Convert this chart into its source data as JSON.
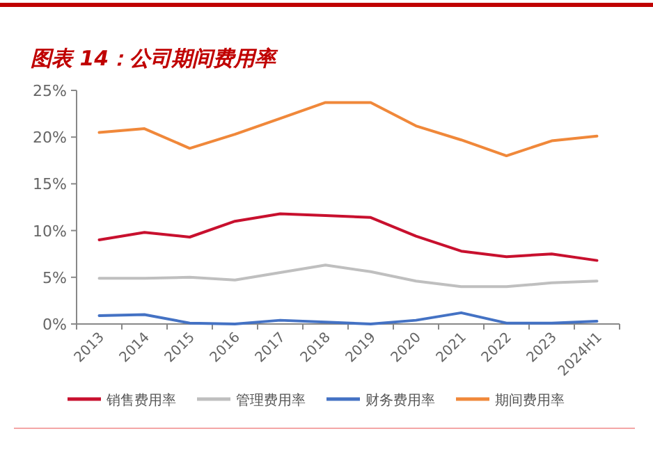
{
  "chart_data": {
    "type": "line",
    "title": "图表 14：公司期间费用率",
    "categories": [
      "2013",
      "2014",
      "2015",
      "2016",
      "2017",
      "2018",
      "2019",
      "2020",
      "2021",
      "2022",
      "2023",
      "2024H1"
    ],
    "series": [
      {
        "name": "销售费用率",
        "color": "#c8102e",
        "values": [
          9.0,
          9.8,
          9.3,
          11.0,
          11.8,
          11.6,
          11.4,
          9.4,
          7.8,
          7.2,
          7.5,
          6.8
        ]
      },
      {
        "name": "管理费用率",
        "color": "#bfbfbf",
        "values": [
          4.9,
          4.9,
          5.0,
          4.7,
          5.5,
          6.3,
          5.6,
          4.6,
          4.0,
          4.0,
          4.4,
          4.6
        ]
      },
      {
        "name": "财务费用率",
        "color": "#4472c4",
        "values": [
          0.9,
          1.0,
          0.1,
          0.0,
          0.4,
          0.2,
          0.0,
          0.4,
          1.2,
          0.1,
          0.1,
          0.3
        ]
      },
      {
        "name": "期间费用率",
        "color": "#f0883a",
        "values": [
          20.5,
          20.9,
          18.8,
          20.3,
          22.0,
          23.7,
          23.7,
          21.2,
          19.7,
          18.0,
          19.6,
          20.1
        ]
      }
    ],
    "ylim": [
      0,
      25
    ],
    "yticks": [
      {
        "value": 0,
        "label": "0%"
      },
      {
        "value": 5,
        "label": "5%"
      },
      {
        "value": 10,
        "label": "10%"
      },
      {
        "value": 15,
        "label": "15%"
      },
      {
        "value": 20,
        "label": "20%"
      },
      {
        "value": 25,
        "label": "25%"
      }
    ],
    "legend": "bottom",
    "grid": false,
    "marker": "none",
    "line_style": "solid"
  }
}
